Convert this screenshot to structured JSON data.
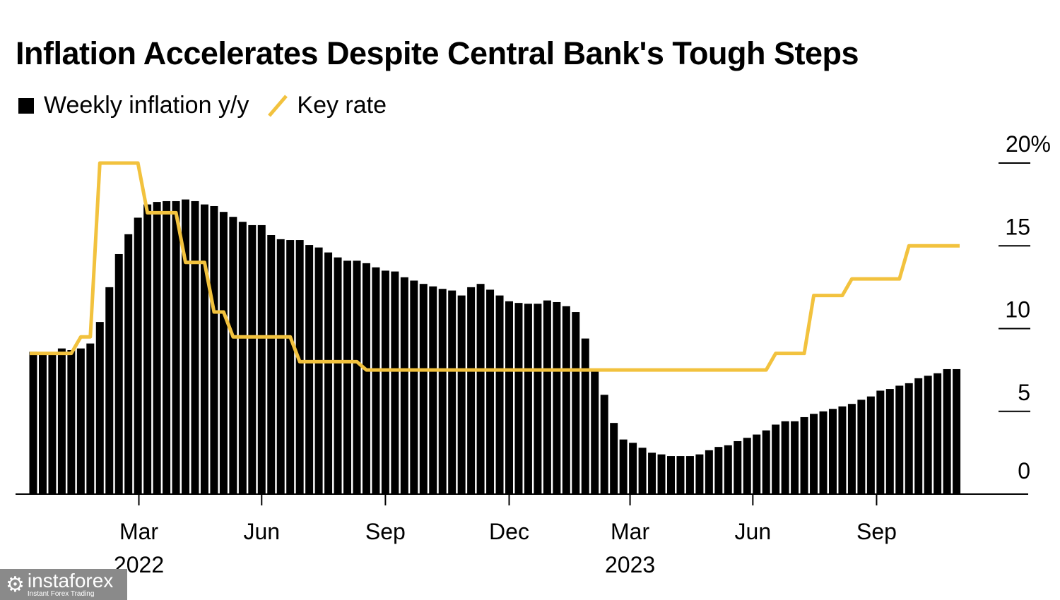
{
  "chart_data": {
    "type": "bar",
    "title": "Inflation Accelerates Despite Central Bank's Tough Steps",
    "xlabel": "",
    "ylabel": "",
    "ylim": [
      0,
      20
    ],
    "y_ticks": [
      {
        "value": 0,
        "label": "0"
      },
      {
        "value": 5,
        "label": "5"
      },
      {
        "value": 10,
        "label": "10"
      },
      {
        "value": 15,
        "label": "15"
      },
      {
        "value": 20,
        "label": "20%"
      }
    ],
    "x_unit": "week index (weekly, Jan 2022 - Nov 2023)",
    "x_ticks": [
      {
        "week": 11.1,
        "label": "Mar",
        "year": "2022"
      },
      {
        "week": 24.0,
        "label": "Jun",
        "year": ""
      },
      {
        "week": 37.0,
        "label": "Sep",
        "year": ""
      },
      {
        "week": 50.0,
        "label": "Dec",
        "year": ""
      },
      {
        "week": 62.7,
        "label": "Mar",
        "year": "2023"
      },
      {
        "week": 75.6,
        "label": "Jun",
        "year": ""
      },
      {
        "week": 88.6,
        "label": "Sep",
        "year": ""
      }
    ],
    "legend": [
      {
        "name": "Weekly inflation y/y",
        "color": "#000000",
        "kind": "bar"
      },
      {
        "name": "Key rate",
        "color": "#F2C23E",
        "kind": "line"
      }
    ],
    "legend_placement": "top-left",
    "grid": false,
    "series": [
      {
        "name": "Weekly inflation y/y",
        "type": "bar",
        "color": "#000000",
        "values": [
          8.6,
          8.5,
          8.5,
          8.8,
          8.7,
          8.8,
          9.1,
          10.4,
          12.5,
          14.5,
          15.7,
          16.7,
          17.5,
          17.65,
          17.7,
          17.7,
          17.8,
          17.7,
          17.5,
          17.4,
          17.05,
          16.75,
          16.45,
          16.25,
          16.25,
          15.65,
          15.4,
          15.35,
          15.35,
          15.05,
          14.9,
          14.6,
          14.3,
          14.1,
          14.1,
          13.95,
          13.7,
          13.5,
          13.45,
          13.1,
          12.9,
          12.7,
          12.55,
          12.4,
          12.3,
          12.0,
          12.5,
          12.7,
          12.35,
          12.0,
          11.65,
          11.55,
          11.5,
          11.5,
          11.7,
          11.6,
          11.35,
          11.0,
          9.4,
          7.4,
          6.0,
          4.3,
          3.3,
          3.1,
          2.8,
          2.5,
          2.4,
          2.3,
          2.3,
          2.3,
          2.4,
          2.65,
          2.85,
          2.95,
          3.2,
          3.4,
          3.6,
          3.85,
          4.2,
          4.4,
          4.4,
          4.65,
          4.85,
          5.0,
          5.15,
          5.3,
          5.45,
          5.7,
          5.9,
          6.25,
          6.35,
          6.55,
          6.7,
          7.0,
          7.15,
          7.3,
          7.55,
          7.55
        ]
      },
      {
        "name": "Key rate",
        "type": "line",
        "color": "#F2C23E",
        "values": [
          8.5,
          8.5,
          8.5,
          8.5,
          8.5,
          9.5,
          9.5,
          20,
          20,
          20,
          20,
          20,
          17,
          17,
          17,
          17,
          14,
          14,
          14,
          11,
          11,
          9.5,
          9.5,
          9.5,
          9.5,
          9.5,
          9.5,
          9.5,
          8,
          8,
          8,
          8,
          8,
          8,
          8,
          7.5,
          7.5,
          7.5,
          7.5,
          7.5,
          7.5,
          7.5,
          7.5,
          7.5,
          7.5,
          7.5,
          7.5,
          7.5,
          7.5,
          7.5,
          7.5,
          7.5,
          7.5,
          7.5,
          7.5,
          7.5,
          7.5,
          7.5,
          7.5,
          7.5,
          7.5,
          7.5,
          7.5,
          7.5,
          7.5,
          7.5,
          7.5,
          7.5,
          7.5,
          7.5,
          7.5,
          7.5,
          7.5,
          7.5,
          7.5,
          7.5,
          7.5,
          7.5,
          8.5,
          8.5,
          8.5,
          8.5,
          12,
          12,
          12,
          12,
          13,
          13,
          13,
          13,
          13,
          13,
          15,
          15,
          15,
          15,
          15,
          15
        ]
      }
    ]
  },
  "watermark": {
    "name": "instaforex",
    "tagline": "Instant Forex Trading"
  }
}
